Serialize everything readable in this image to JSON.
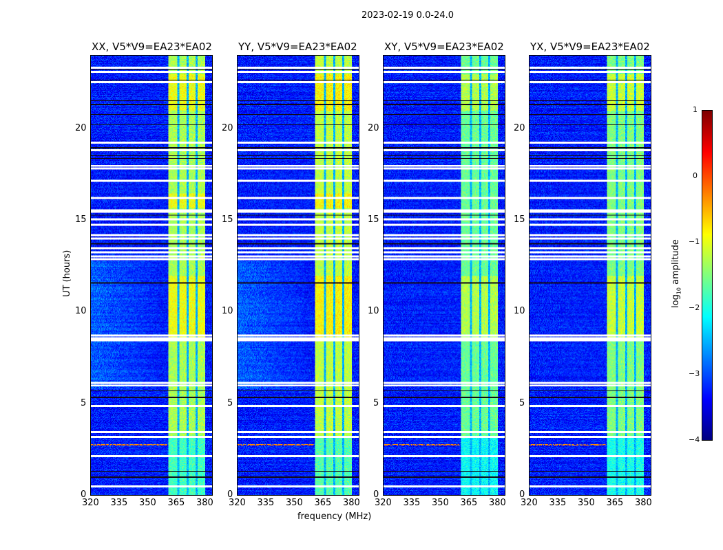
{
  "suptitle": "2023-02-19 0.0-24.0",
  "chart_data": {
    "type": "heatmap",
    "title": "2023-02-19 0.0-24.0",
    "xlabel": "frequency (MHz)",
    "ylabel": "UT (hours)",
    "xlim": [
      320,
      384
    ],
    "ylim": [
      0,
      24
    ],
    "xticks": [
      "320",
      "335",
      "350",
      "365",
      "380"
    ],
    "yticks": [
      "0",
      "5",
      "10",
      "15",
      "20"
    ],
    "panels": [
      {
        "title": "XX, V5*V9=EA23*EA02",
        "band_level": -1.3,
        "lowfreq_hump": true
      },
      {
        "title": "YY, V5*V9=EA23*EA02",
        "band_level": -1.2,
        "lowfreq_hump": true
      },
      {
        "title": "XY, V5*V9=EA23*EA02",
        "band_level": -1.6,
        "lowfreq_hump": false
      },
      {
        "title": "YX, V5*V9=EA23*EA02",
        "band_level": -1.5,
        "lowfreq_hump": false
      }
    ],
    "rfi_band_mhz": [
      360.5,
      380.2
    ],
    "channel_gaps_mhz": [
      365.8,
      370.9,
      375.6
    ],
    "flagged_white_hours": [
      23.36,
      23.13,
      22.57,
      19.27,
      18.86,
      18.0,
      17.85,
      17.17,
      16.24,
      15.56,
      15.5,
      15.07,
      14.77,
      14.21,
      14.02,
      13.5,
      13.27,
      13.05,
      12.9,
      8.74,
      8.59,
      8.47,
      6.15,
      6.0,
      4.87,
      3.45,
      3.19,
      2.14,
      0.49
    ],
    "dark_row_hours": [
      23.25,
      22.69,
      21.56,
      21.37,
      20.81,
      20.25,
      19.0,
      18.56,
      18.41,
      15.3,
      13.76,
      11.62,
      5.7,
      5.36,
      1.31,
      1.01
    ],
    "colorbar": {
      "label": "log10 amplitude",
      "label_base": "log",
      "label_sub": "10",
      "label_rest": " amplitude",
      "range": [
        -4,
        1
      ],
      "ticks": [
        "1",
        "0",
        "−1",
        "−2",
        "−3",
        "−4"
      ],
      "colormap": "jet"
    }
  }
}
